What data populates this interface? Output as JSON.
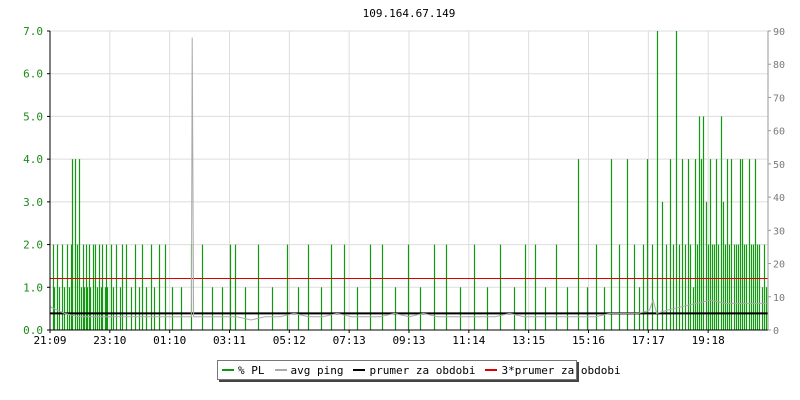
{
  "chart_data": {
    "type": "bar",
    "title": "109.164.67.149",
    "x_tick_labels": [
      "21:09",
      "23:10",
      "01:10",
      "03:11",
      "05:12",
      "07:13",
      "09:13",
      "11:14",
      "13:15",
      "15:16",
      "17:17",
      "19:18"
    ],
    "y_left": {
      "ticks": [
        "0.0",
        "1.0",
        "2.0",
        "3.0",
        "4.0",
        "5.0",
        "6.0",
        "7.0"
      ],
      "ylim": [
        0,
        7
      ],
      "color": "#1a8a1a"
    },
    "y_right": {
      "ticks": [
        "0",
        "10",
        "20",
        "30",
        "40",
        "50",
        "60",
        "70",
        "80",
        "90"
      ],
      "ylim": [
        0,
        90
      ],
      "color": "#7a7a7a"
    },
    "grid": true,
    "legend_position": "bottom-center",
    "series": [
      {
        "name": "% PL",
        "kind": "bar",
        "axis": "left",
        "color": "#119911",
        "x": [
          0.004,
          0.006,
          0.01,
          0.012,
          0.017,
          0.019,
          0.023,
          0.027,
          0.029,
          0.031,
          0.035,
          0.038,
          0.04,
          0.043,
          0.046,
          0.048,
          0.05,
          0.052,
          0.054,
          0.056,
          0.06,
          0.063,
          0.065,
          0.068,
          0.071,
          0.073,
          0.076,
          0.078,
          0.08,
          0.085,
          0.088,
          0.092,
          0.097,
          0.1,
          0.106,
          0.113,
          0.118,
          0.124,
          0.128,
          0.134,
          0.14,
          0.145,
          0.152,
          0.16,
          0.17,
          0.182,
          0.197,
          0.212,
          0.225,
          0.24,
          0.25,
          0.258,
          0.272,
          0.29,
          0.309,
          0.33,
          0.345,
          0.36,
          0.378,
          0.392,
          0.41,
          0.428,
          0.445,
          0.462,
          0.48,
          0.498,
          0.516,
          0.535,
          0.552,
          0.571,
          0.59,
          0.608,
          0.627,
          0.646,
          0.661,
          0.675,
          0.69,
          0.705,
          0.72,
          0.735,
          0.748,
          0.76,
          0.771,
          0.782,
          0.793,
          0.804,
          0.813,
          0.82,
          0.826,
          0.832,
          0.838,
          0.846,
          0.852,
          0.858,
          0.863,
          0.868,
          0.872,
          0.876,
          0.88,
          0.884,
          0.888,
          0.892,
          0.895,
          0.898,
          0.901,
          0.904,
          0.907,
          0.91,
          0.913,
          0.916,
          0.919,
          0.922,
          0.925,
          0.928,
          0.931,
          0.934,
          0.937,
          0.94,
          0.943,
          0.946,
          0.949,
          0.952,
          0.955,
          0.958,
          0.961,
          0.964,
          0.967,
          0.97,
          0.973,
          0.976,
          0.979,
          0.982,
          0.985,
          0.988,
          0.991,
          0.994,
          0.997
        ],
        "values": [
          2,
          1,
          2,
          1,
          2,
          1,
          2,
          1,
          2,
          4,
          4,
          2,
          4,
          1,
          2,
          1,
          2,
          1,
          2,
          1,
          2,
          2,
          1,
          2,
          1,
          2,
          1,
          2,
          1,
          2,
          1,
          2,
          1,
          2,
          2,
          1,
          2,
          1,
          2,
          1,
          2,
          1,
          2,
          2,
          1,
          1,
          2,
          2,
          1,
          1,
          2,
          2,
          1,
          2,
          1,
          2,
          1,
          2,
          1,
          2,
          2,
          1,
          2,
          2,
          1,
          2,
          1,
          2,
          2,
          1,
          2,
          1,
          2,
          1,
          2,
          2,
          1,
          2,
          1,
          4,
          1,
          2,
          1,
          4,
          2,
          4,
          2,
          1,
          2,
          4,
          2,
          7,
          3,
          2,
          4,
          2,
          7,
          2,
          4,
          2,
          4,
          2,
          1,
          4,
          2,
          5,
          4,
          5,
          3,
          2,
          4,
          2,
          2,
          4,
          2,
          5,
          3,
          2,
          4,
          2,
          4,
          2,
          2,
          2,
          4,
          4,
          2,
          2,
          4,
          2,
          2,
          4,
          2,
          2,
          1,
          2,
          1
        ]
      },
      {
        "name": "avg ping",
        "kind": "line",
        "axis": "right",
        "color": "#aaaaaa",
        "x": [
          0.0,
          0.02,
          0.04,
          0.06,
          0.08,
          0.1,
          0.12,
          0.14,
          0.16,
          0.18,
          0.197,
          0.198,
          0.199,
          0.2,
          0.22,
          0.24,
          0.26,
          0.28,
          0.3,
          0.32,
          0.34,
          0.36,
          0.38,
          0.4,
          0.42,
          0.44,
          0.46,
          0.48,
          0.5,
          0.52,
          0.54,
          0.56,
          0.58,
          0.6,
          0.62,
          0.64,
          0.66,
          0.68,
          0.7,
          0.72,
          0.74,
          0.76,
          0.78,
          0.8,
          0.82,
          0.835,
          0.84,
          0.845,
          0.86,
          0.88,
          0.9,
          0.92,
          0.94,
          0.96,
          0.98,
          1.0
        ],
        "values": [
          7,
          5,
          4,
          4,
          4,
          4,
          4,
          4,
          4,
          4,
          4,
          88,
          46,
          4,
          4,
          4,
          4,
          3,
          4,
          4,
          5,
          4,
          4,
          5,
          4,
          4,
          4,
          5,
          4,
          5,
          4,
          4,
          4,
          4,
          4,
          5,
          4,
          4,
          4,
          4,
          4,
          4,
          5,
          5,
          5,
          6,
          9,
          5,
          6,
          7,
          8,
          9,
          8,
          8,
          8,
          8
        ]
      },
      {
        "name": "prumer za obdobi",
        "kind": "hline",
        "axis": "right",
        "color": "#000000",
        "value": 5
      },
      {
        "name": "3*prumer za obdobi",
        "kind": "hline",
        "axis": "right",
        "color": "#dd0000",
        "value": 15.5
      }
    ]
  }
}
